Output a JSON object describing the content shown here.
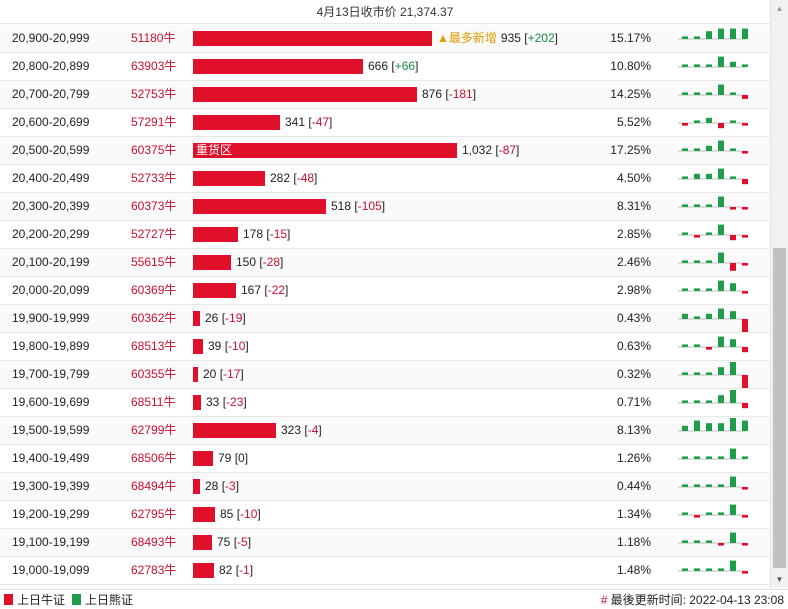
{
  "header": {
    "title": "4月13日收市价 21,374.37"
  },
  "colors": {
    "bull": "#e0102a",
    "bear": "#1e9e4a",
    "accent": "#e39a00"
  },
  "rows": [
    {
      "range": "20,900-20,999",
      "code": "51180牛",
      "bar_ratio": 0.906,
      "inner_label": "",
      "tag": "▲最多新增",
      "count": "935",
      "change": "+202",
      "percent": "15.17%",
      "spark": [
        1,
        1,
        3,
        4,
        4,
        4
      ]
    },
    {
      "range": "20,800-20,899",
      "code": "63903牛",
      "bar_ratio": 0.645,
      "inner_label": "",
      "tag": "",
      "count": "666",
      "change": "+66",
      "percent": "10.80%",
      "spark": [
        1,
        1,
        1,
        4,
        2,
        1
      ]
    },
    {
      "range": "20,700-20,799",
      "code": "52753牛",
      "bar_ratio": 0.849,
      "inner_label": "",
      "tag": "",
      "count": "876",
      "change": "-181",
      "percent": "14.25%",
      "spark": [
        1,
        1,
        1,
        4,
        1,
        -1.5
      ]
    },
    {
      "range": "20,600-20,699",
      "code": "57291牛",
      "bar_ratio": 0.33,
      "inner_label": "",
      "tag": "",
      "count": "341",
      "change": "-47",
      "percent": "5.52%",
      "spark": [
        -1,
        1,
        2,
        -2,
        1,
        -1
      ]
    },
    {
      "range": "20,500-20,599",
      "code": "60375牛",
      "bar_ratio": 1.0,
      "inner_label": "重货区",
      "tag": "",
      "count": "1,032",
      "change": "-87",
      "percent": "17.25%",
      "spark": [
        1,
        1,
        2,
        4,
        1,
        -1
      ]
    },
    {
      "range": "20,400-20,499",
      "code": "52733牛",
      "bar_ratio": 0.273,
      "inner_label": "",
      "tag": "",
      "count": "282",
      "change": "-48",
      "percent": "4.50%",
      "spark": [
        1,
        2,
        2,
        4,
        1,
        -2
      ]
    },
    {
      "range": "20,300-20,399",
      "code": "60373牛",
      "bar_ratio": 0.502,
      "inner_label": "",
      "tag": "",
      "count": "518",
      "change": "-105",
      "percent": "8.31%",
      "spark": [
        1,
        1,
        1,
        4,
        -1,
        -1
      ]
    },
    {
      "range": "20,200-20,299",
      "code": "52727牛",
      "bar_ratio": 0.172,
      "inner_label": "",
      "tag": "",
      "count": "178",
      "change": "-15",
      "percent": "2.85%",
      "spark": [
        1,
        -1,
        1,
        4,
        -2,
        -1
      ]
    },
    {
      "range": "20,100-20,199",
      "code": "55615牛",
      "bar_ratio": 0.145,
      "inner_label": "",
      "tag": "",
      "count": "150",
      "change": "-28",
      "percent": "2.46%",
      "spark": [
        1,
        1,
        1,
        4,
        -3,
        -1
      ]
    },
    {
      "range": "20,000-20,099",
      "code": "60369牛",
      "bar_ratio": 0.162,
      "inner_label": "",
      "tag": "",
      "count": "167",
      "change": "-22",
      "percent": "2.98%",
      "spark": [
        1,
        1,
        1,
        4,
        3,
        -1
      ]
    },
    {
      "range": "19,900-19,999",
      "code": "60362牛",
      "bar_ratio": 0.025,
      "inner_label": "",
      "tag": "",
      "count": "26",
      "change": "-19",
      "percent": "0.43%",
      "spark": [
        2,
        1,
        2,
        4,
        3,
        -5
      ]
    },
    {
      "range": "19,800-19,899",
      "code": "68513牛",
      "bar_ratio": 0.038,
      "inner_label": "",
      "tag": "",
      "count": "39",
      "change": "-10",
      "percent": "0.63%",
      "spark": [
        1,
        1,
        -1,
        4,
        3,
        -2
      ]
    },
    {
      "range": "19,700-19,799",
      "code": "60355牛",
      "bar_ratio": 0.019,
      "inner_label": "",
      "tag": "",
      "count": "20",
      "change": "-17",
      "percent": "0.32%",
      "spark": [
        1,
        1,
        1,
        3,
        5,
        -5
      ]
    },
    {
      "range": "19,600-19,699",
      "code": "68511牛",
      "bar_ratio": 0.032,
      "inner_label": "",
      "tag": "",
      "count": "33",
      "change": "-23",
      "percent": "0.71%",
      "spark": [
        1,
        1,
        1,
        3,
        5,
        -2
      ]
    },
    {
      "range": "19,500-19,599",
      "code": "62799牛",
      "bar_ratio": 0.313,
      "inner_label": "",
      "tag": "",
      "count": "323",
      "change": "-4",
      "percent": "8.13%",
      "spark": [
        2,
        4,
        3,
        3,
        5,
        4
      ]
    },
    {
      "range": "19,400-19,499",
      "code": "68506牛",
      "bar_ratio": 0.077,
      "inner_label": "",
      "tag": "",
      "count": "79",
      "change": "0",
      "percent": "1.26%",
      "spark": [
        1,
        1,
        1,
        1,
        4,
        1
      ]
    },
    {
      "range": "19,300-19,399",
      "code": "68494牛",
      "bar_ratio": 0.027,
      "inner_label": "",
      "tag": "",
      "count": "28",
      "change": "-3",
      "percent": "0.44%",
      "spark": [
        1,
        1,
        1,
        1,
        4,
        -1
      ]
    },
    {
      "range": "19,200-19,299",
      "code": "62795牛",
      "bar_ratio": 0.082,
      "inner_label": "",
      "tag": "",
      "count": "85",
      "change": "-10",
      "percent": "1.34%",
      "spark": [
        1,
        -1,
        1,
        1,
        4,
        -1
      ]
    },
    {
      "range": "19,100-19,199",
      "code": "68493牛",
      "bar_ratio": 0.073,
      "inner_label": "",
      "tag": "",
      "count": "75",
      "change": "-5",
      "percent": "1.18%",
      "spark": [
        1,
        1,
        1,
        -1,
        4,
        -1
      ]
    },
    {
      "range": "19,000-19,099",
      "code": "62783牛",
      "bar_ratio": 0.079,
      "inner_label": "",
      "tag": "",
      "count": "82",
      "change": "-1",
      "percent": "1.48%",
      "spark": [
        1,
        1,
        1,
        1,
        4,
        -1
      ]
    }
  ],
  "legend": {
    "bull_label": "上日牛证",
    "bear_label": "上日熊证"
  },
  "footer": {
    "updated_label": "最後更新时间: 2022-04-13 23:08"
  },
  "scrollbar": {
    "up_icon": "▲",
    "down_icon": "▼"
  }
}
